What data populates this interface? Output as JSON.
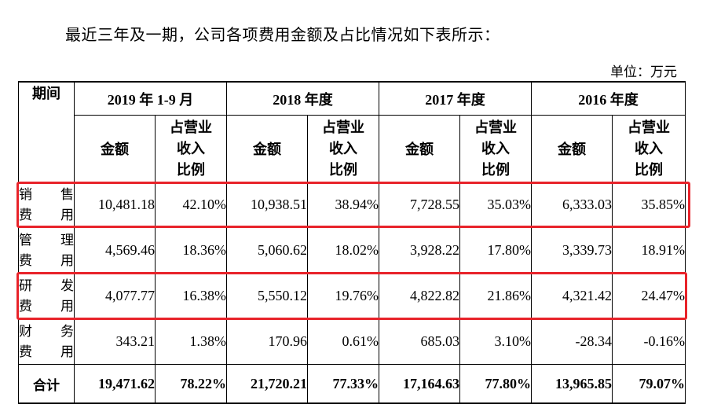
{
  "intro": "最近三年及一期，公司各项费用金额及占比情况如下表所示：",
  "unit": "单位：万元",
  "table": {
    "period_header": "期间",
    "years": [
      "2019 年 1-9 月",
      "2018 年度",
      "2017 年度",
      "2016 年度"
    ],
    "amount_header": "金额",
    "ratio_header_lines": [
      "占营业",
      "收入",
      "比例"
    ],
    "rows": [
      {
        "label_lines": [
          "销售",
          "费用"
        ],
        "values": [
          "10,481.18",
          "42.10%",
          "10,938.51",
          "38.94%",
          "7,728.55",
          "35.03%",
          "6,333.03",
          "35.85%"
        ],
        "highlighted": true
      },
      {
        "label_lines": [
          "管理",
          "费用"
        ],
        "values": [
          "4,569.46",
          "18.36%",
          "5,060.62",
          "18.02%",
          "3,928.22",
          "17.80%",
          "3,339.73",
          "18.91%"
        ],
        "highlighted": false
      },
      {
        "label_lines": [
          "研发",
          "费用"
        ],
        "values": [
          "4,077.77",
          "16.38%",
          "5,550.12",
          "19.76%",
          "4,822.82",
          "21.86%",
          "4,321.42",
          "24.47%"
        ],
        "highlighted": true
      },
      {
        "label_lines": [
          "财务",
          "费用"
        ],
        "values": [
          "343.21",
          "1.38%",
          "170.96",
          "0.61%",
          "685.03",
          "3.10%",
          "-28.34",
          "-0.16%"
        ],
        "highlighted": false
      }
    ],
    "total": {
      "label": "合计",
      "values": [
        "19,471.62",
        "78.22%",
        "21,720.21",
        "77.33%",
        "17,164.63",
        "77.80%",
        "13,965.85",
        "79.07%"
      ]
    }
  },
  "colors": {
    "highlight": "#e8232a"
  }
}
